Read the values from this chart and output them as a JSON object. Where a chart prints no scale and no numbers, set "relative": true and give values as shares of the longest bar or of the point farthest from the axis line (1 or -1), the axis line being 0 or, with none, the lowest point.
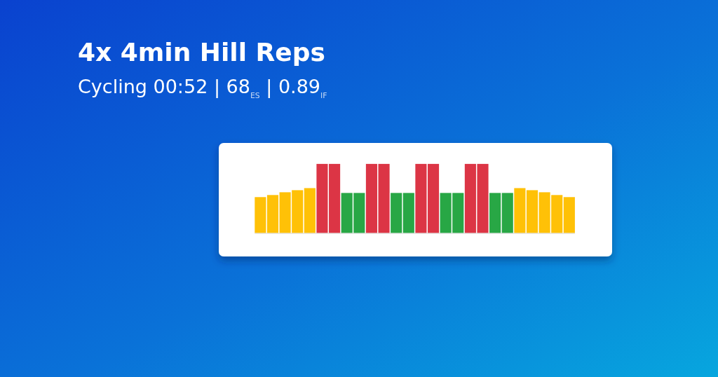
{
  "chart_data": {
    "type": "bar",
    "title": "4x 4min Hill Reps",
    "subtitle": "Cycling 00:52 | 68$_{ES}$ | 0.89$_{IF}$",
    "relative": true,
    "categories": [
      null,
      null,
      null,
      null,
      null,
      null,
      null,
      null,
      null,
      null,
      null,
      null,
      null,
      null,
      null,
      null,
      null,
      null,
      null,
      null,
      null,
      null,
      null,
      null,
      null,
      null
    ],
    "values": [
      0.52,
      0.55,
      0.59,
      0.62,
      0.65,
      1,
      1,
      0.58,
      0.58,
      1,
      1,
      0.58,
      0.58,
      1,
      1,
      0.58,
      0.58,
      1,
      1,
      0.58,
      0.58,
      0.65,
      0.62,
      0.59,
      0.55,
      0.52
    ],
    "colors": [
      "#ffc107",
      "#ffc107",
      "#ffc107",
      "#ffc107",
      "#ffc107",
      "#dc3545",
      "#dc3545",
      "#28a745",
      "#28a745",
      "#dc3545",
      "#dc3545",
      "#28a745",
      "#28a745",
      "#dc3545",
      "#dc3545",
      "#28a745",
      "#28a745",
      "#dc3545",
      "#dc3545",
      "#28a745",
      "#28a745",
      "#ffc107",
      "#ffc107",
      "#ffc107",
      "#ffc107",
      "#ffc107"
    ]
  }
}
